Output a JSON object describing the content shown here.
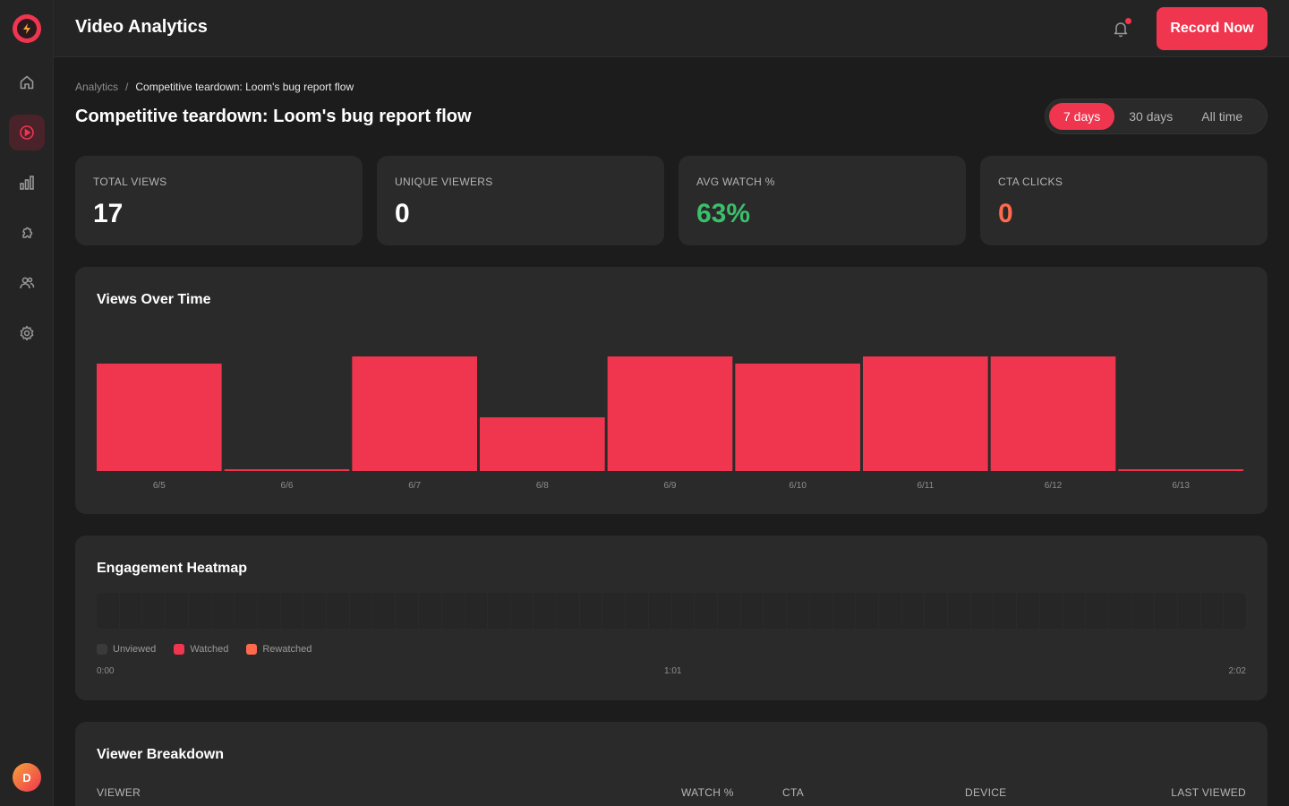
{
  "header": {
    "title": "Video Analytics",
    "record_label": "Record Now"
  },
  "sidebar": {
    "items": [
      {
        "icon": "home-icon",
        "active": false
      },
      {
        "icon": "play-circle-icon",
        "active": true
      },
      {
        "icon": "bar-chart-icon",
        "active": false
      },
      {
        "icon": "integrations-icon",
        "active": false
      },
      {
        "icon": "users-icon",
        "active": false
      },
      {
        "icon": "gear-icon",
        "active": false
      }
    ],
    "avatar_initial": "D"
  },
  "breadcrumb": {
    "parent": "Analytics",
    "separator": "/",
    "current": "Competitive teardown: Loom's bug report flow"
  },
  "page_title": "Competitive teardown: Loom's bug report flow",
  "range_tabs": [
    "7 days",
    "30 days",
    "All time"
  ],
  "range_selected": "7 days",
  "stats": [
    {
      "label": "TOTAL VIEWS",
      "value": "17"
    },
    {
      "label": "UNIQUE VIEWERS",
      "value": "0"
    },
    {
      "label": "AVG WATCH %",
      "value": "63%"
    },
    {
      "label": "CTA CLICKS",
      "value": "0"
    }
  ],
  "views_panel": {
    "title": "Views Over Time"
  },
  "chart_data": {
    "type": "bar",
    "categories": [
      "6/5",
      "6/6",
      "6/7",
      "6/8",
      "6/9",
      "6/10",
      "6/11",
      "6/12",
      "6/13"
    ],
    "values": [
      3,
      0,
      3.2,
      1.5,
      3.2,
      3,
      3.2,
      3.2,
      0
    ],
    "title": "Views Over Time",
    "ylim": [
      0,
      3.5
    ],
    "grid": false,
    "bar_color": "#f0354f"
  },
  "heatmap_panel": {
    "title": "Engagement Heatmap",
    "legend": [
      "Unviewed",
      "Watched",
      "Rewatched"
    ],
    "legend_colors": [
      "#3a3a3a",
      "#f0354f",
      "#ff6a4d"
    ],
    "time_start": "0:00",
    "time_mid": "1:01",
    "time_end": "2:02"
  },
  "viewer_panel": {
    "title": "Viewer Breakdown",
    "columns": [
      "VIEWER",
      "WATCH %",
      "CTA",
      "DEVICE",
      "LAST VIEWED"
    ]
  },
  "colors": {
    "accent": "#f0354f",
    "green": "#3bbf6b",
    "orange": "#ff6a4d"
  }
}
